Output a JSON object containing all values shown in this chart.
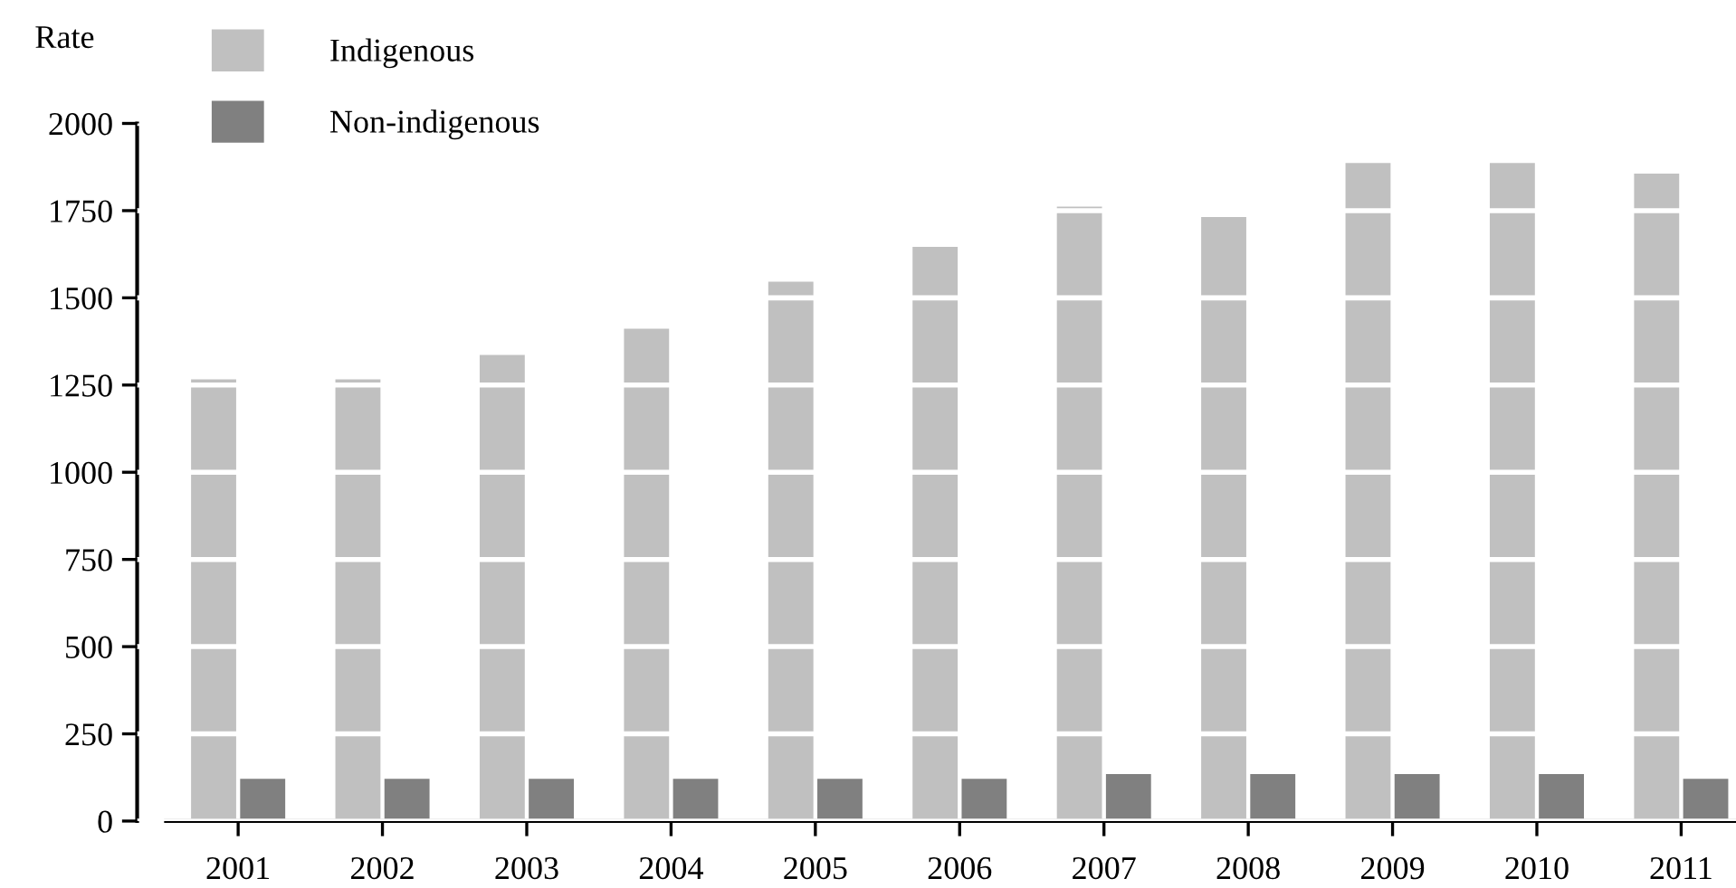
{
  "chart_data": {
    "type": "bar",
    "ylabel": "Rate",
    "categories": [
      "2001",
      "2002",
      "2003",
      "2004",
      "2005",
      "2006",
      "2007",
      "2008",
      "2009",
      "2010",
      "2011"
    ],
    "series": [
      {
        "name": "Indigenous",
        "color": "#c0c0c0",
        "values": [
          1270,
          1270,
          1340,
          1415,
          1550,
          1650,
          1765,
          1735,
          1890,
          1890,
          1860
        ]
      },
      {
        "name": "Non-indigenous",
        "color": "#808080",
        "values": [
          125,
          125,
          125,
          125,
          125,
          125,
          138,
          138,
          138,
          138,
          125
        ]
      }
    ],
    "ylim": [
      0,
      2000
    ],
    "yticks": [
      0,
      250,
      500,
      750,
      1000,
      1250,
      1500,
      1750,
      2000
    ],
    "grid": "y",
    "legend": "top left"
  }
}
